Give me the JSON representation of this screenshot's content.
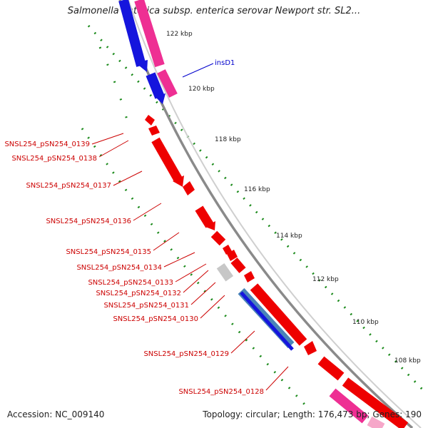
{
  "title": "Salmonella enterica subsp. enterica serovar Newport str. SL2...",
  "footer": {
    "accession": "Accession: NC_009140",
    "summary": "Topology: circular; Length: 176,473 bp; Genes: 190"
  },
  "colors": {
    "backbone": "#8a8a8a",
    "gene_red": "#ee0000",
    "gene_blue": "#1515dd",
    "gene_pink": "#ee2f93",
    "gene_steel": "#4a84b8",
    "gene_gray": "#c7c7c7",
    "ticks": "#1b8a1b",
    "label_red": "#cc0000",
    "label_blue": "#0000cc"
  },
  "scale_labels": [
    "122 kbp",
    "120 kbp",
    "118 kbp",
    "116 kbp",
    "114 kbp",
    "112 kbp",
    "110 kbp",
    "108 kbp"
  ],
  "gene_labels": [
    {
      "text": "insD1",
      "color": "blue"
    },
    {
      "text": "SNSL254_pSN254_0139",
      "color": "red"
    },
    {
      "text": "SNSL254_pSN254_0138",
      "color": "red"
    },
    {
      "text": "SNSL254_pSN254_0137",
      "color": "red"
    },
    {
      "text": "SNSL254_pSN254_0136",
      "color": "red"
    },
    {
      "text": "SNSL254_pSN254_0135",
      "color": "red"
    },
    {
      "text": "SNSL254_pSN254_0134",
      "color": "red"
    },
    {
      "text": "SNSL254_pSN254_0133",
      "color": "red"
    },
    {
      "text": "SNSL254_pSN254_0132",
      "color": "red"
    },
    {
      "text": "SNSL254_pSN254_0131",
      "color": "red"
    },
    {
      "text": "SNSL254_pSN254_0130",
      "color": "red"
    },
    {
      "text": "SNSL254_pSN254_0129",
      "color": "red"
    },
    {
      "text": "SNSL254_pSN254_0128",
      "color": "red"
    }
  ]
}
